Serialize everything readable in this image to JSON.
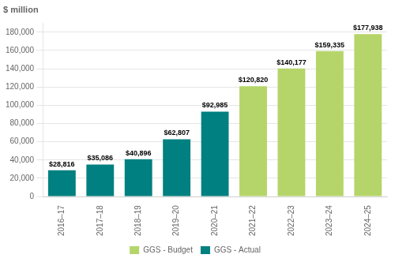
{
  "chart_data": {
    "type": "bar",
    "ylabel": "$ million",
    "categories": [
      "2016–17",
      "2017–18",
      "2018–19",
      "2019–20",
      "2020–21",
      "2021–22",
      "2022–23",
      "2023–24",
      "2024–25"
    ],
    "series": [
      {
        "name": "GGS - Budget",
        "color": "#b5d56a",
        "values": [
          0,
          0,
          0,
          0,
          0,
          120820,
          140177,
          159335,
          177938
        ],
        "value_labels": [
          null,
          null,
          null,
          null,
          null,
          "$120,820",
          "$140,177",
          "$159,335",
          "$177,938"
        ]
      },
      {
        "name": "GGS - Actual",
        "color": "#008080",
        "values": [
          28816,
          35086,
          40896,
          62807,
          92985,
          0,
          0,
          0,
          0
        ],
        "value_labels": [
          "$28,816",
          "$35,086",
          "$40,896",
          "$62,807",
          "$92,985",
          null,
          null,
          null,
          null
        ]
      }
    ],
    "ylim": [
      0,
      190000
    ],
    "yticks": [
      0,
      {
        "value": 20000,
        "label": "20,000"
      },
      {
        "value": 40000,
        "label": "40,000"
      },
      {
        "value": 60000,
        "label": "60,000"
      },
      {
        "value": 80000,
        "label": "80,000"
      },
      {
        "value": 100000,
        "label": "100,000"
      },
      {
        "value": 120000,
        "label": "120,000"
      },
      {
        "value": 140000,
        "label": "140,000"
      },
      {
        "value": 160000,
        "label": "160,000"
      },
      {
        "value": 180000,
        "label": "180,000"
      }
    ],
    "grid": true,
    "legend": "bottom",
    "data_labels": true
  }
}
